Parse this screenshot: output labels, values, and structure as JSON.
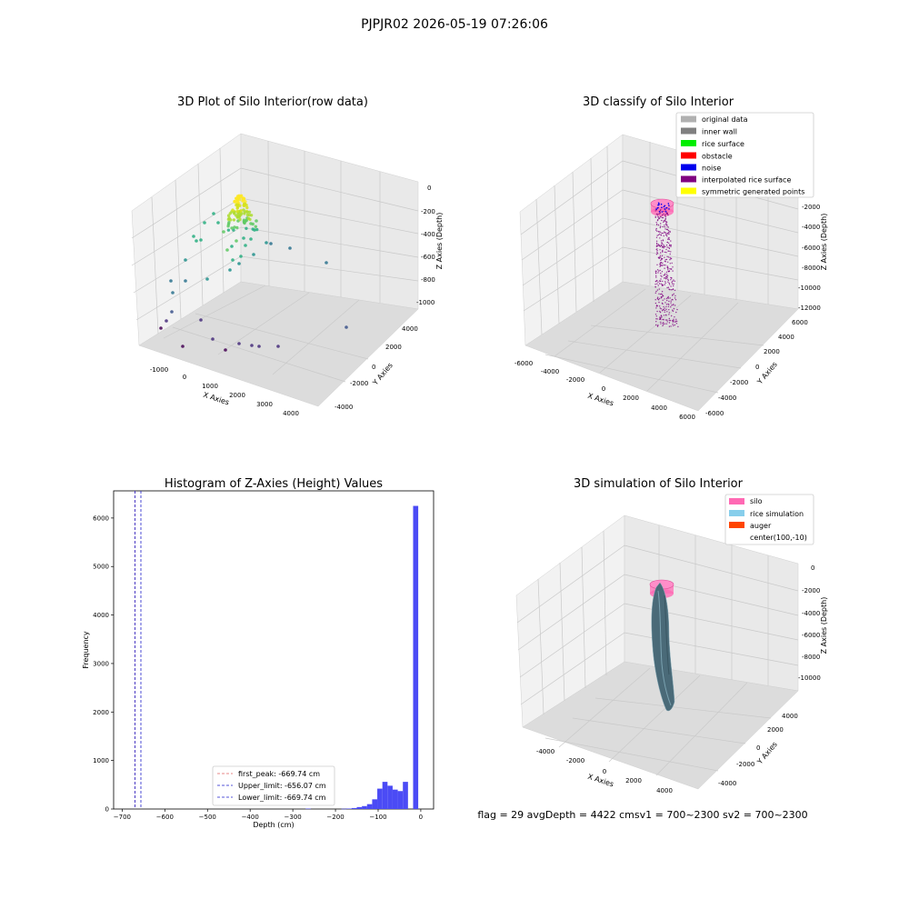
{
  "figure_title": "PJPJR02 2026-05-19 07:26:06",
  "colors": {
    "pane_left": "#f2f2f2",
    "pane_right": "#e9e9e9",
    "pane_floor": "#dcdcdc",
    "grid": "#c9c9c9",
    "hist_bar": "#4b4bf5",
    "first_peak_line": "#e06060",
    "limit_line": "#1f1fcc",
    "silo": "#ff69b4",
    "rice_sim": "#87ceeb",
    "auger": "#ff4500",
    "sim_surface": "#4a6a78",
    "classify_purple": "#800080"
  },
  "chart_data": [
    {
      "type": "scatter",
      "title": "3D Plot of Silo Interior(row data)",
      "xlabel": "X Axies",
      "ylabel": "Y Axies",
      "zlabel": "Z Axies (Depth)",
      "x_ticks": [
        "-1000",
        "0",
        "1000",
        "2000",
        "3000",
        "4000"
      ],
      "y_ticks": [
        "-4000",
        "-2000",
        "0",
        "2000",
        "4000"
      ],
      "z_ticks": [
        "0",
        "-200",
        "-400",
        "-600",
        "-800",
        "-1000"
      ],
      "xlim": [
        -1500,
        4500
      ],
      "ylim": [
        -4500,
        4500
      ],
      "zlim": [
        -1100,
        0
      ],
      "grid": true,
      "colormap": "viridis"
    },
    {
      "type": "scatter",
      "title": "3D classify of Silo Interior",
      "xlabel": "X Axies",
      "ylabel": "Y Axies",
      "zlabel": "Z Axies (Depth)",
      "x_ticks": [
        "-6000",
        "-4000",
        "-2000",
        "0",
        "2000",
        "4000",
        "6000"
      ],
      "y_ticks": [
        "-6000",
        "-4000",
        "-2000",
        "0",
        "2000",
        "4000",
        "6000"
      ],
      "z_ticks": [
        "-2000",
        "-4000",
        "-6000",
        "-8000",
        "-10000",
        "-12000"
      ],
      "xlim": [
        -6500,
        6500
      ],
      "ylim": [
        -6500,
        6500
      ],
      "zlim": [
        -12500,
        0
      ],
      "grid": true,
      "legend_position": "top-right",
      "legend": [
        {
          "label": "original data",
          "color": "#b0b0b0"
        },
        {
          "label": "inner wall",
          "color": "#808080"
        },
        {
          "label": "rice surface",
          "color": "#00ee00"
        },
        {
          "label": "obstacle",
          "color": "#ff0000"
        },
        {
          "label": "noise",
          "color": "#0000ee"
        },
        {
          "label": "interpolated rice surface",
          "color": "#800080"
        },
        {
          "label": "symmetric generated points",
          "color": "#ffff00"
        }
      ]
    },
    {
      "type": "bar",
      "title": "Histogram of Z-Axies (Height) Values",
      "xlabel": "Depth (cm)",
      "ylabel": "Frequency",
      "xlim": [
        -720,
        30
      ],
      "ylim": [
        0,
        6560
      ],
      "x_ticks": [
        -700,
        -600,
        -500,
        -400,
        -300,
        -200,
        -100,
        0
      ],
      "y_ticks": [
        0,
        1000,
        2000,
        3000,
        4000,
        5000,
        6000
      ],
      "bin_width": 12,
      "bins": [
        {
          "x": -264,
          "value": 8
        },
        {
          "x": -180,
          "value": 5
        },
        {
          "x": -168,
          "value": 10
        },
        {
          "x": -156,
          "value": 20
        },
        {
          "x": -144,
          "value": 40
        },
        {
          "x": -132,
          "value": 60
        },
        {
          "x": -120,
          "value": 100
        },
        {
          "x": -108,
          "value": 200
        },
        {
          "x": -96,
          "value": 420
        },
        {
          "x": -84,
          "value": 560
        },
        {
          "x": -72,
          "value": 480
        },
        {
          "x": -60,
          "value": 400
        },
        {
          "x": -48,
          "value": 370
        },
        {
          "x": -36,
          "value": 560
        },
        {
          "x": -12,
          "value": 6250
        }
      ],
      "vlines": [
        {
          "label": "first_peak: -669.74 cm",
          "x": -669.74,
          "color": "#e06060"
        },
        {
          "label": "Upper_limit: -656.07 cm",
          "x": -656.07,
          "color": "#1f1fcc"
        },
        {
          "label": "Lower_limit: -669.74 cm",
          "x": -669.74,
          "color": "#1f1fcc"
        }
      ],
      "legend_position": "bottom-center",
      "grid": false
    },
    {
      "type": "scatter",
      "title": "3D simulation of Silo Interior",
      "xlabel": "X Axies",
      "ylabel": "Y Axies",
      "zlabel": "Z Axies (Depth)",
      "x_ticks": [
        "-4000",
        "-2000",
        "0",
        "2000",
        "4000"
      ],
      "y_ticks": [
        "-4000",
        "-2000",
        "0",
        "2000",
        "4000"
      ],
      "z_ticks": [
        "0",
        "-2000",
        "-4000",
        "-6000",
        "-8000",
        "-10000"
      ],
      "xlim": [
        -5000,
        5000
      ],
      "ylim": [
        -5000,
        5000
      ],
      "zlim": [
        -11000,
        0
      ],
      "grid": true,
      "legend_position": "top-right",
      "legend": [
        {
          "label": "silo",
          "color": "#ff69b4"
        },
        {
          "label": "rice simulation",
          "color": "#87ceeb"
        },
        {
          "label": "auger",
          "color": "#ff4500"
        },
        {
          "label": "center(100,-10)",
          "color": ""
        }
      ]
    }
  ],
  "status_text": "flag = 29  avgDepth = 4422 cmsv1 = 700~2300  sv2 = 700~2300"
}
